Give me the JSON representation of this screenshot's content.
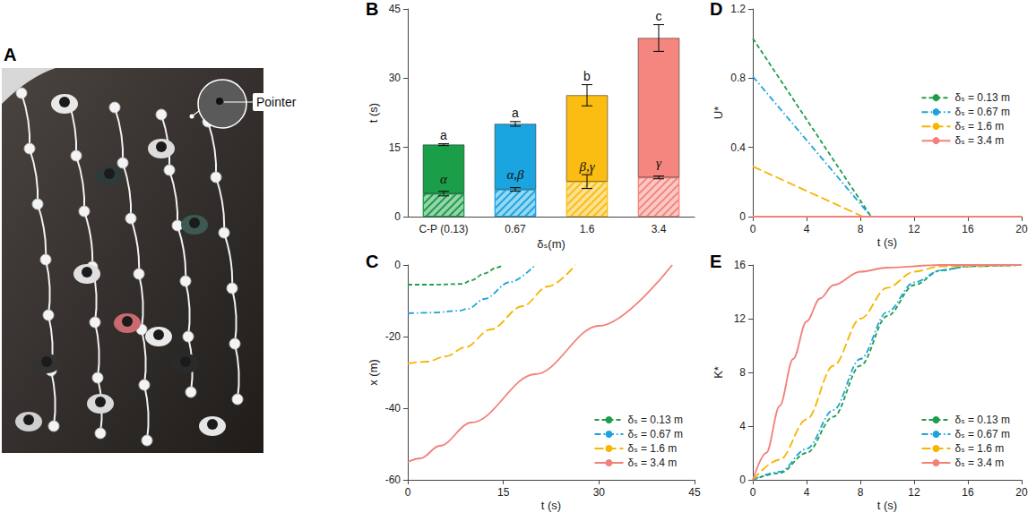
{
  "chart_data": [
    {
      "type": "image",
      "panel": "A",
      "annotations": [
        "Pointer"
      ]
    },
    {
      "type": "bar",
      "panel": "B",
      "stacked": true,
      "grid": false,
      "xlabel": "δₛ(m)",
      "ylabel": "t (s)",
      "categories": [
        "C-P (0.13)",
        "0.67",
        "1.6",
        "3.4"
      ],
      "colors": [
        "#1a9e48",
        "#1aa5e0",
        "#fbbd12",
        "#f5867f"
      ],
      "ylim": [
        0,
        45
      ],
      "yticks": [
        0,
        15,
        30,
        45
      ],
      "series": [
        {
          "values": [
            5.0,
            5.9,
            7.6,
            8.5
          ],
          "errors": [
            0.5,
            0.4,
            1.5,
            0.3
          ],
          "annotations": [
            "α",
            "α,β",
            "β,γ",
            "γ"
          ]
        },
        {
          "values": [
            10.6,
            14.2,
            18.7,
            30.2
          ],
          "errors": [
            0.2,
            0.5,
            2.3,
            2.9
          ],
          "annotations": [
            "a",
            "a",
            "b",
            "c"
          ]
        }
      ]
    },
    {
      "type": "line",
      "panel": "C",
      "grid": false,
      "legend": "bottom-right",
      "xlabel": "t (s)",
      "ylabel": "x (m)",
      "xlim": [
        0,
        45
      ],
      "xticks": [
        0,
        15,
        30,
        45
      ],
      "ylim": [
        -60,
        0
      ],
      "yticks": [
        -60,
        -40,
        -20,
        0
      ],
      "series": [
        {
          "name": "δₛ = 0.13 m",
          "color": "#1f9e4a",
          "line_style": "dashed",
          "x": [
            0,
            4,
            8.5,
            10,
            12,
            14,
            15
          ],
          "values": [
            -5.5,
            -5.5,
            -5.3,
            -4.3,
            -2.4,
            -0.7,
            0
          ]
        },
        {
          "name": "δₛ = 0.67 m",
          "color": "#1ba3dc",
          "line_style": "dashdot",
          "x": [
            0,
            4,
            8,
            9.5,
            12,
            16,
            20
          ],
          "values": [
            -13.5,
            -13.3,
            -12.8,
            -12.2,
            -9.5,
            -4.8,
            0
          ]
        },
        {
          "name": "δₛ = 1.6 m",
          "color": "#f7b500",
          "line_style": "longdash",
          "x": [
            0,
            3,
            6,
            9,
            13,
            18,
            22,
            26.3
          ],
          "values": [
            -27.5,
            -27,
            -25.5,
            -23,
            -18,
            -11.5,
            -6,
            0
          ]
        },
        {
          "name": "δₛ = 3.4 m",
          "color": "#f2817b",
          "line_style": "solid",
          "x": [
            0,
            2,
            5,
            10,
            20,
            30,
            41.5
          ],
          "values": [
            -55,
            -54,
            -50.5,
            -44,
            -30.5,
            -17,
            0
          ]
        }
      ]
    },
    {
      "type": "line",
      "panel": "D",
      "grid": false,
      "legend": "right",
      "xlabel": "t (s)",
      "ylabel": "U*",
      "xlim": [
        0,
        20
      ],
      "xticks": [
        0,
        4,
        8,
        12,
        16,
        20
      ],
      "ylim": [
        0,
        1.2
      ],
      "yticks": [
        0,
        0.4,
        0.8,
        1.2
      ],
      "series": [
        {
          "name": "δₛ = 0.13 m",
          "color": "#1f9e4a",
          "line_style": "dashed",
          "x": [
            0,
            8.8,
            20
          ],
          "values": [
            1.03,
            0,
            0
          ]
        },
        {
          "name": "δₛ = 0.67 m",
          "color": "#1ba3dc",
          "line_style": "dashdot",
          "x": [
            0,
            8.8,
            20
          ],
          "values": [
            0.81,
            0,
            0
          ]
        },
        {
          "name": "δₛ = 1.6 m",
          "color": "#f7b500",
          "line_style": "longdash",
          "x": [
            0,
            8.2,
            20
          ],
          "values": [
            0.29,
            0,
            0
          ]
        },
        {
          "name": "δₛ = 3.4 m",
          "color": "#f2817b",
          "line_style": "solid",
          "x": [
            0,
            20
          ],
          "values": [
            0,
            0
          ]
        }
      ]
    },
    {
      "type": "line",
      "panel": "E",
      "grid": false,
      "legend": "bottom-right",
      "xlabel": "t (s)",
      "ylabel": "K*",
      "xlim": [
        0,
        20
      ],
      "xticks": [
        0,
        4,
        8,
        12,
        16,
        20
      ],
      "ylim": [
        0,
        16
      ],
      "yticks": [
        0,
        4,
        8,
        12,
        16
      ],
      "series": [
        {
          "name": "δₛ = 0.13 m",
          "color": "#1f9e4a",
          "line_style": "dashed",
          "x": [
            0,
            2,
            4,
            6,
            8,
            10,
            12,
            14,
            16,
            20
          ],
          "values": [
            0,
            0.5,
            2,
            4.7,
            8.5,
            12.2,
            14.5,
            15.6,
            15.9,
            16
          ]
        },
        {
          "name": "δₛ = 0.67 m",
          "color": "#1ba3dc",
          "line_style": "dashdot",
          "x": [
            0,
            2,
            4,
            6,
            8,
            10,
            12,
            14,
            16,
            20
          ],
          "values": [
            0,
            0.6,
            2.3,
            5.2,
            9,
            12.5,
            14.7,
            15.6,
            15.9,
            16
          ]
        },
        {
          "name": "δₛ = 1.6 m",
          "color": "#f7b500",
          "line_style": "longdash",
          "x": [
            0,
            2,
            4,
            6,
            8,
            10,
            12,
            14,
            20
          ],
          "values": [
            0,
            1.5,
            4.5,
            8.5,
            12,
            14.3,
            15.5,
            15.9,
            16
          ]
        },
        {
          "name": "δₛ = 3.4 m",
          "color": "#f2817b",
          "line_style": "solid",
          "x": [
            0,
            1,
            2,
            3,
            4,
            5,
            6,
            8,
            10,
            14,
            20
          ],
          "values": [
            0,
            2,
            5.5,
            9,
            11.8,
            13.5,
            14.5,
            15.5,
            15.8,
            16,
            16
          ]
        }
      ]
    }
  ]
}
